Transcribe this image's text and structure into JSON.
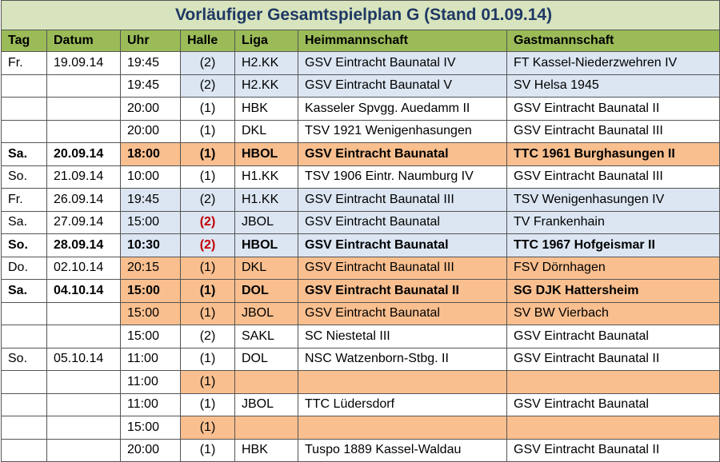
{
  "title": "Vorläufiger Gesamtspielplan G (Stand 01.09.14)",
  "headers": [
    "Tag",
    "Datum",
    "Uhr",
    "Halle",
    "Liga",
    "Heimmannschaft",
    "Gastmannschaft"
  ],
  "rows": [
    [
      "Fr.",
      "19.09.14",
      "19:45",
      "(2)",
      "H2.KK",
      "GSV Eintracht Baunatal IV",
      "FT  Kassel-Niederzwehren IV"
    ],
    [
      null,
      null,
      "19:45",
      "(2)",
      "H2.KK",
      "GSV Eintracht Baunatal V",
      "SV Helsa 1945"
    ],
    [
      null,
      null,
      "20:00",
      "(1)",
      "HBK",
      "Kasseler Spvgg. Auedamm II",
      "GSV Eintracht Baunatal II"
    ],
    [
      null,
      null,
      "20:00",
      "(1)",
      "DKL",
      "TSV 1921 Wenigenhasungen",
      "GSV Eintracht Baunatal III"
    ],
    [
      "Sa.",
      "20.09.14",
      "18:00",
      "(1)",
      "HBOL",
      "GSV Eintracht Baunatal",
      "TTC 1961 Burghasungen II"
    ],
    [
      "So.",
      "21.09.14",
      "10:00",
      "(1)",
      "H1.KK",
      "TSV 1906 Eintr. Naumburg IV",
      "GSV Eintracht Baunatal III"
    ],
    [
      "Fr.",
      "26.09.14",
      "19:45",
      "(2)",
      "H1.KK",
      "GSV Eintracht Baunatal III",
      "TSV Wenigenhasungen IV"
    ],
    [
      "Sa.",
      "27.09.14",
      "15:00",
      "(2)",
      "JBOL",
      "GSV Eintracht Baunatal",
      "TV Frankenhain"
    ],
    [
      "So.",
      "28.09.14",
      "10:30",
      "(2)",
      "HBOL",
      "GSV Eintracht Baunatal",
      "TTC 1967 Hofgeismar II"
    ],
    [
      "Do.",
      "02.10.14",
      "20:15",
      "(1)",
      "DKL",
      "GSV Eintracht Baunatal III",
      "FSV Dörnhagen"
    ],
    [
      "Sa.",
      "04.10.14",
      "15:00",
      "(1)",
      "DOL",
      "GSV Eintracht Baunatal II",
      "SG DJK Hattersheim"
    ],
    [
      null,
      null,
      "15:00",
      "(1)",
      "JBOL",
      "GSV Eintracht Baunatal",
      " SV BW Vierbach"
    ],
    [
      null,
      null,
      "15:00",
      "(2)",
      "SAKL",
      "SC Niestetal III",
      "GSV Eintracht Baunatal"
    ],
    [
      "So.",
      "05.10.14",
      "11:00",
      "(1)",
      "DOL",
      "NSC Watzenborn-Stbg. II",
      "GSV Eintracht Baunatal II"
    ],
    [
      null,
      null,
      "11:00",
      "(1)",
      null,
      null,
      null
    ],
    [
      null,
      null,
      "11:00",
      "(1)",
      "JBOL",
      "TTC Lüdersdorf",
      "GSV Eintracht Baunatal"
    ],
    [
      null,
      null,
      "15:00",
      "(1)",
      null,
      null,
      null
    ],
    [
      null,
      null,
      "20:00",
      "(1)",
      "HBK",
      "Tuspo 1889 Kassel-Waldau",
      "GSV Eintracht Baunatal II"
    ]
  ]
}
